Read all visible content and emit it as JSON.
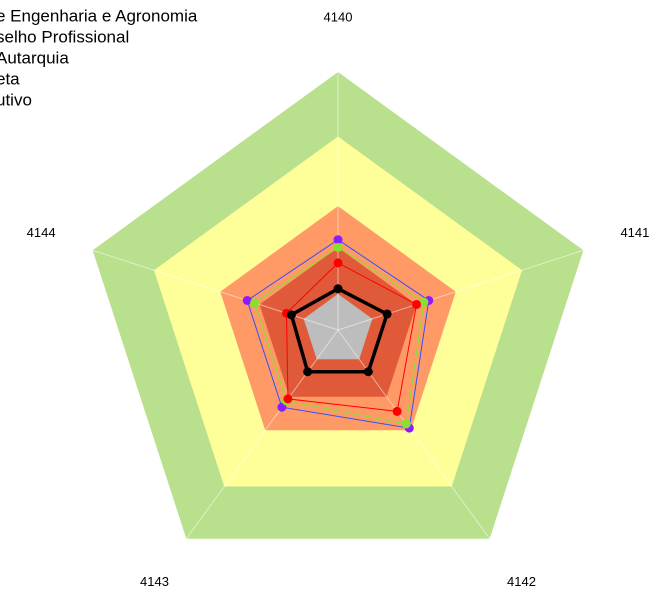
{
  "chart_data": {
    "type": "radar",
    "legend_lines": [
      "e Engenharia e Agronomia",
      "selho Profissional",
      "Autarquia",
      "eta",
      "utivo"
    ],
    "categories": [
      "4140",
      "4141",
      "4142",
      "4143",
      "4144"
    ],
    "rlim": [
      0,
      100
    ],
    "bands": {
      "values": [
        100,
        75,
        48,
        32,
        14
      ],
      "colors": [
        "#b9e08c",
        "#ffff99",
        "#ff9966",
        "#e05a3a",
        "#bdbdbd"
      ]
    },
    "series": [
      {
        "color": "#3050ff",
        "marker_color": "#8a1cff",
        "width": 1,
        "values": [
          35,
          37,
          47,
          37,
          37
        ]
      },
      {
        "color": "#88e030",
        "marker_color": "#88e030",
        "width": 1,
        "values": [
          32,
          35,
          45,
          34,
          34
        ]
      },
      {
        "color": "#ff0000",
        "marker_color": "#ff0000",
        "width": 1,
        "values": [
          26,
          32,
          39,
          33,
          21
        ]
      },
      {
        "color": "#000000",
        "marker_color": "#000000",
        "width": 3.5,
        "values": [
          16,
          20,
          20,
          20,
          19
        ]
      }
    ]
  }
}
